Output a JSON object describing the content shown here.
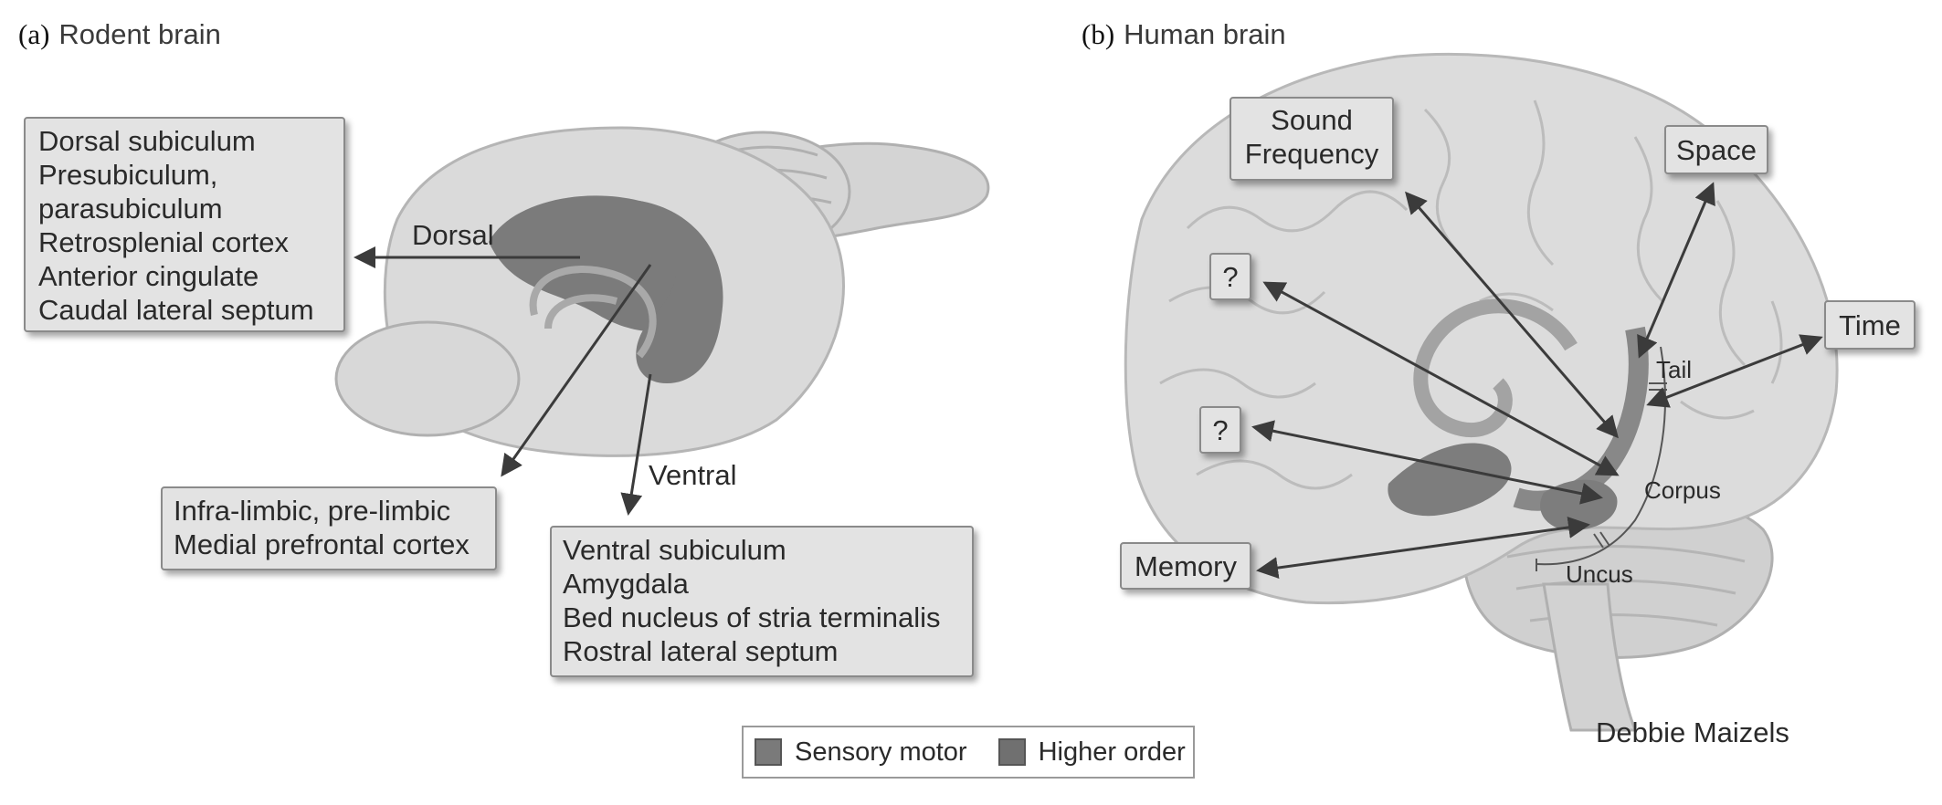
{
  "panels": {
    "a": {
      "letter": "(a)",
      "title": "Rodent brain"
    },
    "b": {
      "letter": "(b)",
      "title": "Human brain"
    }
  },
  "rodent": {
    "dorsal_label": "Dorsal",
    "ventral_label": "Ventral",
    "dorsal_box": [
      "Dorsal subiculum",
      "Presubiculum,",
      "parasubiculum",
      "Retrosplenial cortex",
      "Anterior cingulate",
      "Caudal lateral septum"
    ],
    "prefrontal_box": [
      "Infra-limbic, pre-limbic",
      "Medial prefrontal cortex"
    ],
    "ventral_box": [
      "Ventral subiculum",
      "Amygdala",
      "Bed nucleus of stria terminalis",
      "Rostral lateral septum"
    ]
  },
  "human": {
    "sound_box": [
      "Sound",
      "Frequency"
    ],
    "space_box": "Space",
    "time_box": "Time",
    "question_upper": "?",
    "question_lower": "?",
    "memory_box": "Memory",
    "tail_label": "Tail",
    "corpus_label": "Corpus",
    "uncus_label": "Uncus"
  },
  "legend": [
    {
      "label": "Sensory motor",
      "color": "#7a7a7a"
    },
    {
      "label": "Higher order",
      "color": "#707070"
    }
  ],
  "colors": {
    "brain_fill": "#d9d9d9",
    "brain_outline": "#b5b5b5",
    "region_dark": "#7b7b7b",
    "region_mid": "#8f8f8f",
    "arrow": "#3b3b3b",
    "box_fill": "#e3e3e3"
  },
  "credit": "Debbie Maizels"
}
